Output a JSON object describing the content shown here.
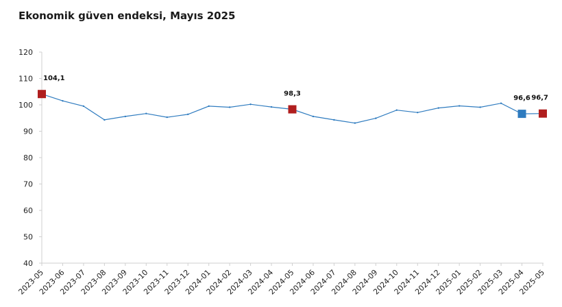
{
  "title": "Ekonomik güven endeksi, Mayıs 2025",
  "colors": {
    "line": "#2e7bbf",
    "highlight_red": "#b01e1e",
    "highlight_blue": "#2e7bbf",
    "axis": "#cfcfcf"
  },
  "chart_data": {
    "type": "line",
    "title": "Ekonomik güven endeksi, Mayıs 2025",
    "xlabel": "",
    "ylabel": "",
    "ylim": [
      40,
      120
    ],
    "yticks": [
      40,
      50,
      60,
      70,
      80,
      90,
      100,
      110,
      120
    ],
    "grid": false,
    "categories": [
      "2023-05",
      "2023-06",
      "2023-07",
      "2023-08",
      "2023-09",
      "2023-10",
      "2023-11",
      "2023-12",
      "2024-01",
      "2024-02",
      "2024-03",
      "2024-04",
      "2024-05",
      "2024-06",
      "2024-07",
      "2024-08",
      "2024-09",
      "2024-10",
      "2024-11",
      "2024-12",
      "2025-01",
      "2025-02",
      "2025-03",
      "2025-04",
      "2025-05"
    ],
    "series": [
      {
        "values": [
          104.1,
          101.5,
          99.5,
          94.3,
          95.6,
          96.7,
          95.3,
          96.4,
          99.5,
          99.1,
          100.2,
          99.2,
          98.3,
          95.6,
          94.3,
          93.1,
          94.9,
          98.0,
          97.1,
          98.8,
          99.6,
          99.1,
          100.6,
          96.6,
          96.7
        ]
      }
    ],
    "markers": [
      {
        "index": 0,
        "label": "104,1",
        "color": "red"
      },
      {
        "index": 12,
        "label": "98,3",
        "color": "red"
      },
      {
        "index": 23,
        "label": "96,6",
        "color": "blue"
      },
      {
        "index": 24,
        "label": "96,7",
        "color": "red"
      }
    ]
  }
}
